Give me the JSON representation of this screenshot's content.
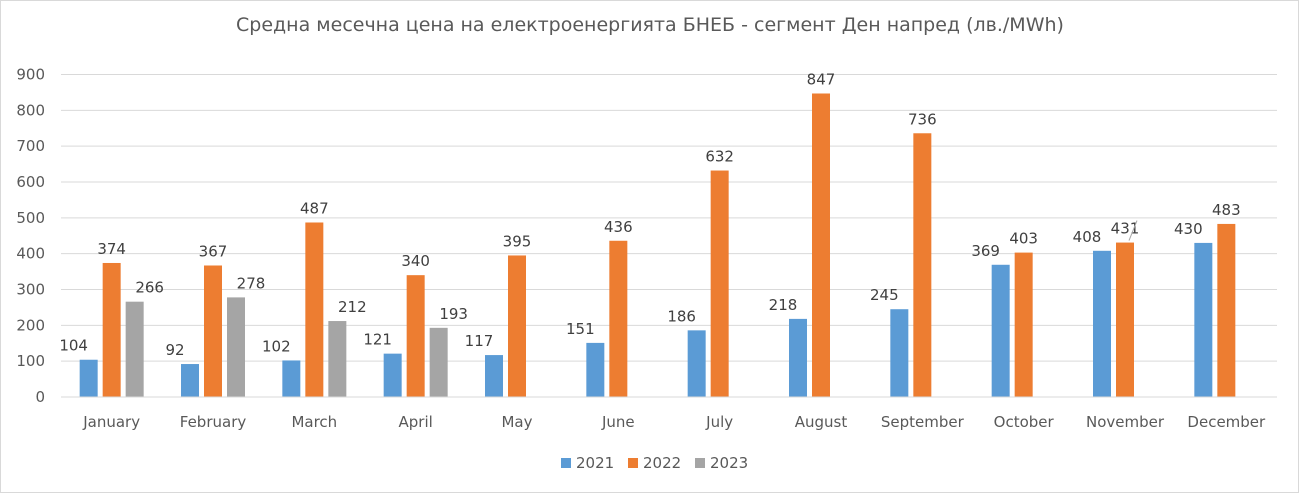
{
  "chart_data": {
    "type": "bar",
    "title": "Средна месечна цена на електроенергията БНЕБ - сегмент Ден напред (лв./MWh)",
    "xlabel": "",
    "ylabel": "",
    "ylim": [
      0,
      900
    ],
    "yticks": [
      0,
      100,
      200,
      300,
      400,
      500,
      600,
      700,
      800,
      900
    ],
    "grid": true,
    "legend_position": "bottom",
    "categories": [
      "January",
      "February",
      "March",
      "April",
      "May",
      "June",
      "July",
      "August",
      "September",
      "October",
      "November",
      "December"
    ],
    "series": [
      {
        "name": "2021",
        "color": "#5b9bd5",
        "values": [
          104,
          92,
          102,
          121,
          117,
          151,
          186,
          218,
          245,
          369,
          408,
          430
        ]
      },
      {
        "name": "2022",
        "color": "#ed7d31",
        "values": [
          374,
          367,
          487,
          340,
          395,
          436,
          632,
          847,
          736,
          403,
          431,
          483
        ]
      },
      {
        "name": "2023",
        "color": "#a5a5a5",
        "values": [
          266,
          278,
          212,
          193,
          null,
          null,
          null,
          null,
          null,
          null,
          null,
          null
        ]
      }
    ]
  }
}
